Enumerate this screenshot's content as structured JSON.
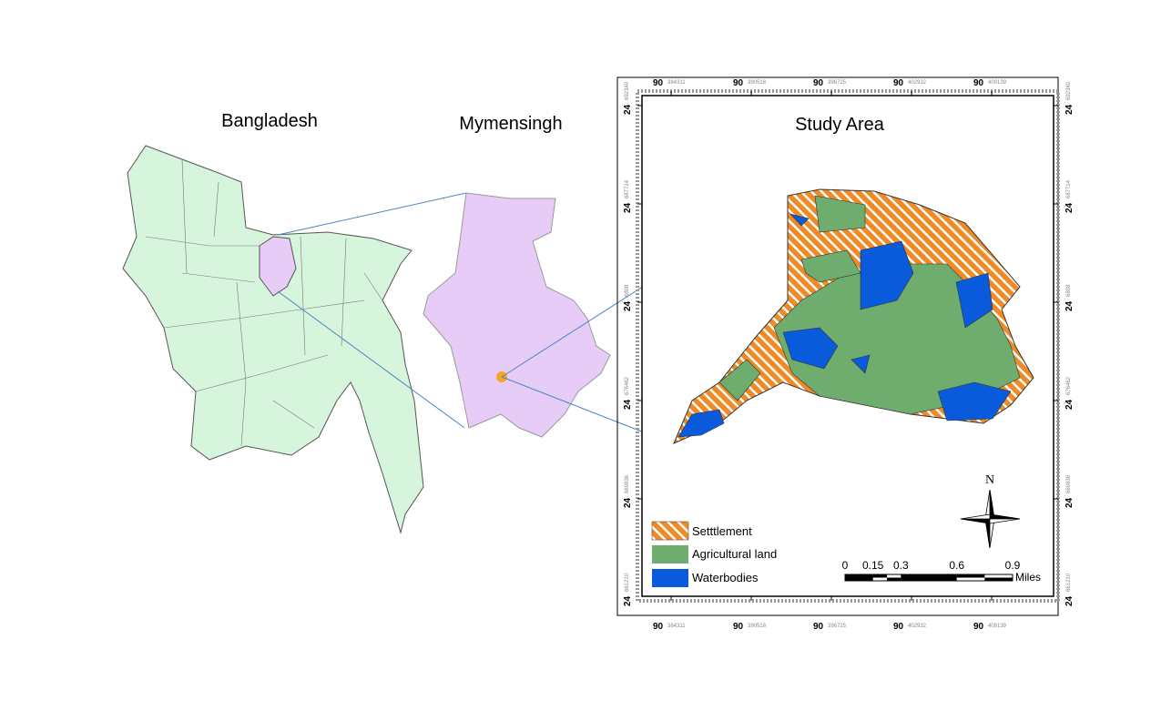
{
  "maps": [
    {
      "title": "Bangladesh"
    },
    {
      "title": "Mymensingh"
    },
    {
      "title": "Study Area"
    }
  ],
  "legend": [
    "Setttlement",
    "Agricultural land",
    "Waterbodies"
  ],
  "scale_bar": {
    "ticks": [
      0,
      0.15,
      0.3,
      0.6,
      0.9
    ],
    "unit": "Miles"
  },
  "north": "N",
  "grid": {
    "x_labels": [
      {
        "deg": "90",
        "min": "384311"
      },
      {
        "deg": "90",
        "min": "390518"
      },
      {
        "deg": "90",
        "min": "396725"
      },
      {
        "deg": "90",
        "min": "402932"
      },
      {
        "deg": "90",
        "min": "409139"
      }
    ],
    "y_labels": [
      {
        "deg": "24",
        "min": "692340"
      },
      {
        "deg": "24",
        "min": "687714"
      },
      {
        "deg": "24",
        "min": "6808"
      },
      {
        "deg": "24",
        "min": "676462"
      },
      {
        "deg": "24",
        "min": "669836"
      },
      {
        "deg": "24",
        "min": "661210"
      }
    ]
  }
}
